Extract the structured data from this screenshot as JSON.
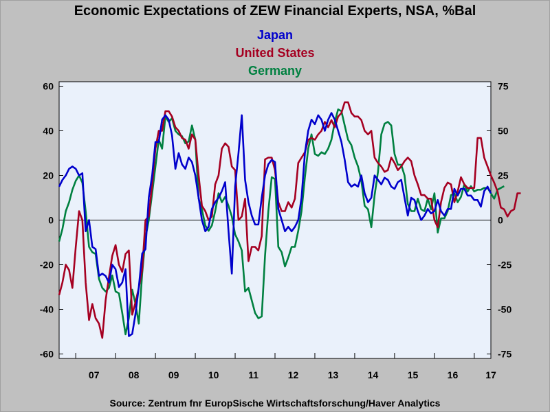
{
  "chart_data": {
    "type": "line",
    "title": "Economic Expectations of ZEW Financial Experts, NSA, %Bal",
    "source": "Source:  Zentrum fnr EuropSische Wirtschaftsforschung/Haver Analytics",
    "x_start": "2006-08",
    "x_tick_labels": [
      "07",
      "08",
      "09",
      "10",
      "11",
      "12",
      "13",
      "14",
      "15",
      "16",
      "17"
    ],
    "left_axis": {
      "ylim": [
        -62,
        62
      ],
      "ticks": [
        60,
        40,
        20,
        0,
        -20,
        -40,
        -60
      ],
      "labels": [
        "60",
        "40",
        "20",
        "0",
        "-20",
        "-40",
        "-60"
      ]
    },
    "right_axis": {
      "ylim": [
        -77.5,
        77.5
      ],
      "ticks": [
        75,
        50,
        25,
        0,
        -25,
        -50,
        -75
      ],
      "labels": [
        "75",
        "50",
        "25",
        "0",
        "-25",
        "-50",
        "-75"
      ]
    },
    "grid": false,
    "zero_line": true,
    "legend_placement": "top-center",
    "series": [
      {
        "name": "Japan",
        "axis": "left",
        "color": "#0000cc",
        "values": [
          15,
          18,
          20,
          23,
          24,
          23,
          20,
          21,
          -5,
          0,
          -12,
          -13,
          -25,
          -24,
          -25,
          -28,
          -20,
          -22,
          -30,
          -28,
          -22,
          -52,
          -51,
          -42,
          -30,
          -15,
          -13,
          10,
          20,
          35,
          35,
          45,
          47,
          45,
          38,
          23,
          30,
          25,
          23,
          28,
          26,
          20,
          10,
          0,
          -5,
          -3,
          5,
          8,
          10,
          13,
          17,
          -5,
          -24,
          15,
          30,
          47,
          18,
          8,
          2,
          -2,
          -2,
          10,
          20,
          25,
          27,
          26,
          5,
          0,
          -5,
          -3,
          -5,
          -3,
          0,
          10,
          30,
          40,
          45,
          43,
          47,
          45,
          40,
          45,
          48,
          45,
          40,
          35,
          27,
          17,
          15,
          16,
          15,
          20,
          12,
          8,
          10,
          20,
          18,
          16,
          19,
          18,
          15,
          14,
          17,
          18,
          10,
          2,
          10,
          9,
          4,
          0,
          2,
          5,
          3,
          4,
          9,
          4,
          2,
          5,
          5,
          14,
          11,
          14,
          14,
          11,
          11,
          9,
          9,
          6,
          13,
          15,
          12
        ]
      },
      {
        "name": "United States",
        "axis": "right",
        "color": "#a50021",
        "values": [
          -42,
          -35,
          -25,
          -28,
          -38,
          -15,
          5,
          0,
          -35,
          -56,
          -47,
          -55,
          -58,
          -66,
          -45,
          -32,
          -20,
          -14,
          -25,
          -29,
          -19,
          -17,
          -53,
          -46,
          -38,
          -28,
          0,
          2,
          20,
          40,
          50,
          50,
          61,
          61,
          58,
          52,
          50,
          46,
          45,
          40,
          48,
          45,
          25,
          8,
          5,
          0,
          2,
          20,
          25,
          40,
          43,
          41,
          30,
          28,
          0,
          2,
          12,
          -23,
          -15,
          -15,
          -17,
          -9,
          34,
          35,
          35,
          28,
          10,
          5,
          5,
          10,
          7,
          12,
          32,
          35,
          38,
          45,
          46,
          45,
          48,
          50,
          55,
          52,
          56,
          52,
          58,
          60,
          66,
          66,
          60,
          58,
          58,
          56,
          50,
          48,
          50,
          35,
          32,
          30,
          27,
          28,
          35,
          32,
          28,
          30,
          33,
          35,
          33,
          25,
          20,
          14,
          14,
          12,
          12,
          0,
          -4,
          10,
          18,
          21,
          20,
          10,
          16,
          24,
          20,
          18,
          18,
          18,
          46,
          46,
          35,
          30,
          25,
          21,
          16,
          7,
          6,
          2,
          5,
          6,
          15,
          15
        ]
      },
      {
        "name": "Germany",
        "axis": "right",
        "color": "#008040",
        "values": [
          -12,
          -5,
          5,
          10,
          17,
          22,
          25,
          21,
          5,
          -15,
          -18,
          -19,
          -33,
          -38,
          -40,
          -38,
          -31,
          -40,
          -41,
          -52,
          -64,
          -55,
          -39,
          -47,
          -58,
          -30,
          -10,
          0,
          15,
          30,
          45,
          40,
          58,
          55,
          57,
          50,
          48,
          47,
          43,
          44,
          53,
          45,
          12,
          6,
          -3,
          -6,
          -3,
          5,
          15,
          10,
          13,
          8,
          2,
          -8,
          -12,
          -17,
          -40,
          -38,
          -45,
          -52,
          -55,
          -54,
          -20,
          5,
          24,
          23,
          -15,
          -18,
          -26,
          -21,
          -15,
          -15,
          -6,
          5,
          24,
          40,
          48,
          37,
          36,
          38,
          37,
          40,
          45,
          55,
          62,
          61,
          53,
          45,
          42,
          35,
          30,
          22,
          8,
          6,
          -4,
          14,
          27,
          48,
          54,
          55,
          53,
          37,
          31,
          31,
          25,
          9,
          5,
          5,
          12,
          6,
          5,
          12,
          6,
          15,
          -7,
          1,
          1,
          5,
          14,
          15,
          10,
          13,
          20,
          16,
          19,
          16,
          17,
          17,
          18,
          18,
          15,
          12,
          17,
          18,
          19
        ]
      }
    ]
  }
}
